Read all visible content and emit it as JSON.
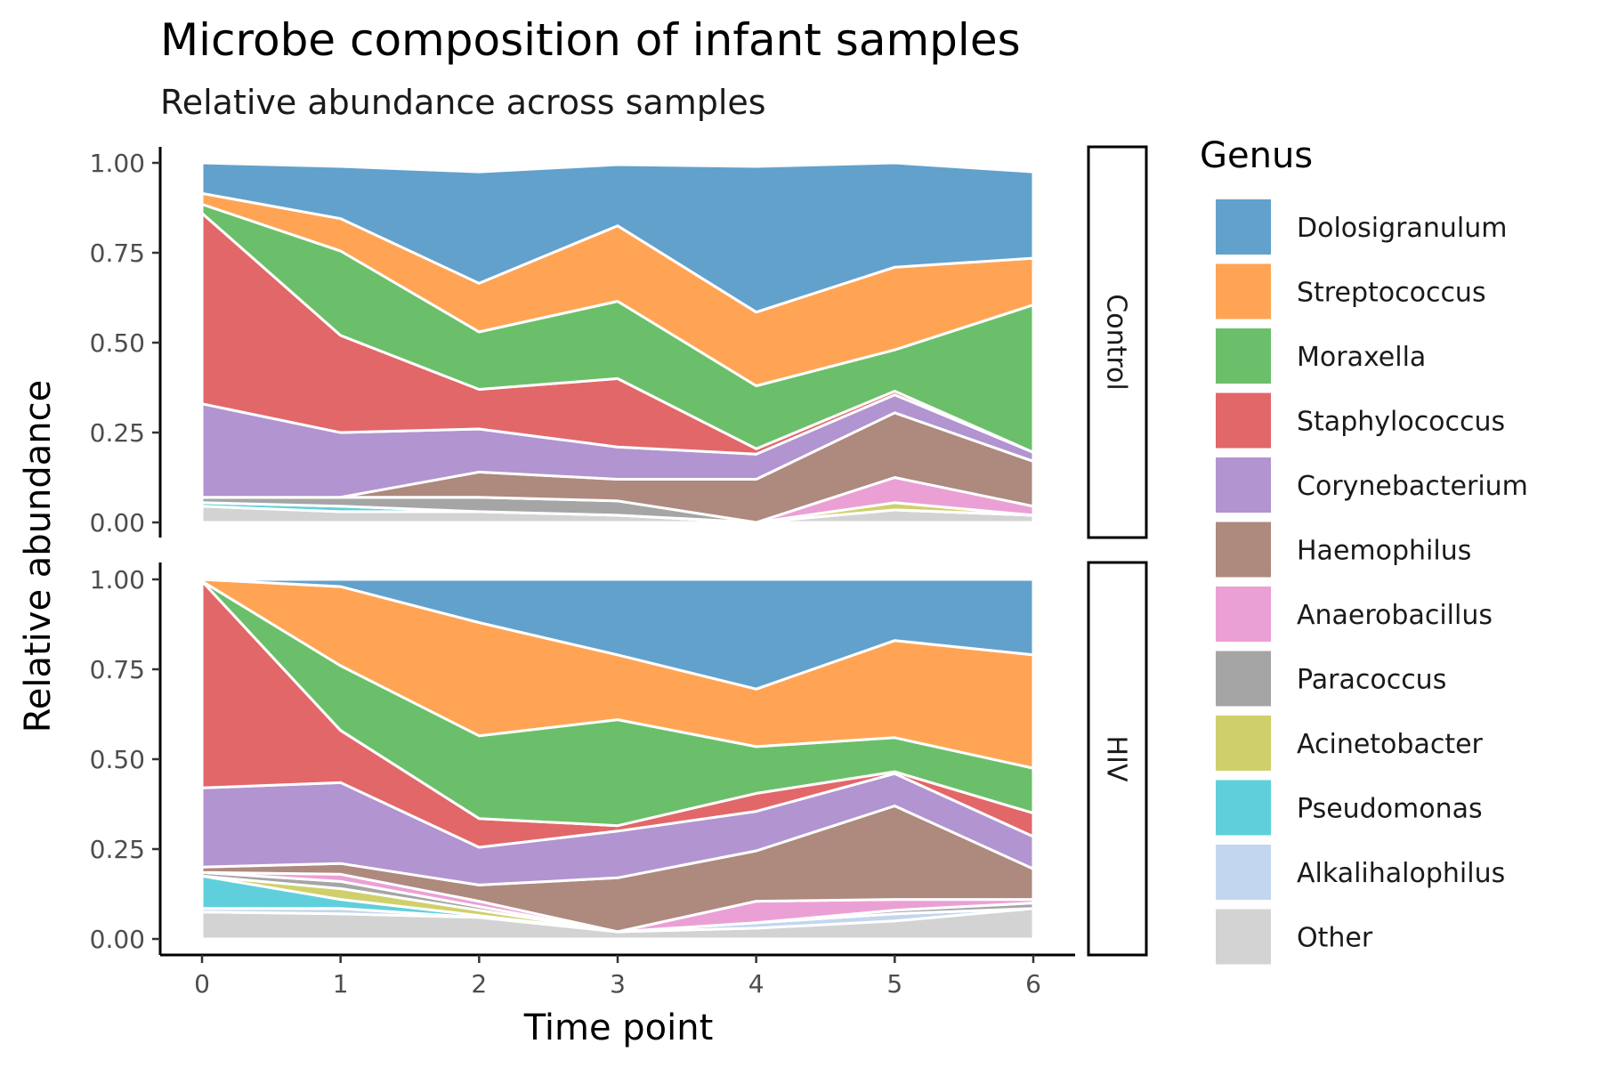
{
  "chart_data": {
    "type": "area",
    "stacked": true,
    "normalized": true,
    "title": "Microbe composition of infant samples",
    "subtitle": "Relative abundance across samples",
    "xlabel": "Time point",
    "ylabel": "Relative abundance",
    "x": [
      0,
      1,
      2,
      3,
      4,
      5,
      6
    ],
    "xlim": [
      0,
      6
    ],
    "ylim": [
      0,
      1
    ],
    "yticks": [
      "0.00",
      "0.25",
      "0.50",
      "0.75",
      "1.00"
    ],
    "xticks": [
      "0",
      "1",
      "2",
      "3",
      "4",
      "5",
      "6"
    ],
    "grid": false,
    "legend": {
      "title": "Genus",
      "position": "right"
    },
    "stack_order_bottom_to_top": [
      "Other",
      "Alkalihalophilus",
      "Pseudomonas",
      "Acinetobacter",
      "Paracoccus",
      "Anaerobacillus",
      "Haemophilus",
      "Corynebacterium",
      "Staphylococcus",
      "Moraxella",
      "Streptococcus",
      "Dolosigranulum"
    ],
    "series": [
      {
        "name": "Dolosigranulum",
        "color": "#62A1CC"
      },
      {
        "name": "Streptococcus",
        "color": "#FFA455"
      },
      {
        "name": "Moraxella",
        "color": "#6BBF6A"
      },
      {
        "name": "Staphylococcus",
        "color": "#E26769"
      },
      {
        "name": "Corynebacterium",
        "color": "#B294D1"
      },
      {
        "name": "Haemophilus",
        "color": "#AD897E"
      },
      {
        "name": "Anaerobacillus",
        "color": "#EBA0D5"
      },
      {
        "name": "Paracoccus",
        "color": "#A5A5A5"
      },
      {
        "name": "Acinetobacter",
        "color": "#CFD06B"
      },
      {
        "name": "Pseudomonas",
        "color": "#5FD0DB"
      },
      {
        "name": "Alkalihalophilus",
        "color": "#C3D6EF"
      },
      {
        "name": "Other",
        "color": "#D3D3D3"
      }
    ],
    "panels": [
      {
        "label": "Control",
        "values": {
          "Other": [
            0.045,
            0.03,
            0.03,
            0.02,
            0.0,
            0.035,
            0.02
          ],
          "Alkalihalophilus": [
            0.0,
            0.0,
            0.0,
            0.0,
            0.0,
            0.0,
            0.0
          ],
          "Pseudomonas": [
            0.01,
            0.015,
            0.0,
            0.0,
            0.0,
            0.0,
            0.0
          ],
          "Acinetobacter": [
            0.0,
            0.0,
            0.0,
            0.0,
            0.0,
            0.02,
            0.0
          ],
          "Paracoccus": [
            0.015,
            0.025,
            0.04,
            0.04,
            0.0,
            0.0,
            0.0
          ],
          "Anaerobacillus": [
            0.0,
            0.0,
            0.0,
            0.0,
            0.0,
            0.07,
            0.025
          ],
          "Haemophilus": [
            0.0,
            0.0,
            0.07,
            0.06,
            0.12,
            0.18,
            0.125
          ],
          "Corynebacterium": [
            0.26,
            0.18,
            0.12,
            0.09,
            0.07,
            0.05,
            0.025
          ],
          "Staphylococcus": [
            0.53,
            0.27,
            0.11,
            0.19,
            0.015,
            0.01,
            0.0
          ],
          "Moraxella": [
            0.025,
            0.235,
            0.16,
            0.215,
            0.175,
            0.115,
            0.41
          ],
          "Streptococcus": [
            0.03,
            0.09,
            0.135,
            0.21,
            0.205,
            0.23,
            0.13
          ],
          "Dolosigranulum": [
            0.085,
            0.145,
            0.31,
            0.17,
            0.405,
            0.29,
            0.24
          ]
        }
      },
      {
        "label": "HIV",
        "values": {
          "Other": [
            0.075,
            0.07,
            0.06,
            0.02,
            0.03,
            0.05,
            0.085
          ],
          "Alkalihalophilus": [
            0.01,
            0.015,
            0.0,
            0.0,
            0.015,
            0.02,
            0.0
          ],
          "Pseudomonas": [
            0.09,
            0.025,
            0.005,
            0.0,
            0.0,
            0.0,
            0.0
          ],
          "Acinetobacter": [
            0.0,
            0.03,
            0.015,
            0.0,
            0.0,
            0.0,
            0.0
          ],
          "Paracoccus": [
            0.01,
            0.02,
            0.01,
            0.0,
            0.0,
            0.01,
            0.015
          ],
          "Anaerobacillus": [
            0.0,
            0.02,
            0.015,
            0.0,
            0.06,
            0.03,
            0.01
          ],
          "Haemophilus": [
            0.015,
            0.03,
            0.045,
            0.15,
            0.14,
            0.26,
            0.085
          ],
          "Corynebacterium": [
            0.22,
            0.225,
            0.105,
            0.13,
            0.11,
            0.09,
            0.09
          ],
          "Staphylococcus": [
            0.575,
            0.145,
            0.08,
            0.015,
            0.05,
            0.005,
            0.065
          ],
          "Moraxella": [
            0.0,
            0.18,
            0.23,
            0.295,
            0.13,
            0.095,
            0.125
          ],
          "Streptococcus": [
            0.005,
            0.22,
            0.315,
            0.18,
            0.16,
            0.27,
            0.315
          ],
          "Dolosigranulum": [
            0.0,
            0.02,
            0.12,
            0.21,
            0.305,
            0.17,
            0.21
          ]
        }
      }
    ]
  }
}
